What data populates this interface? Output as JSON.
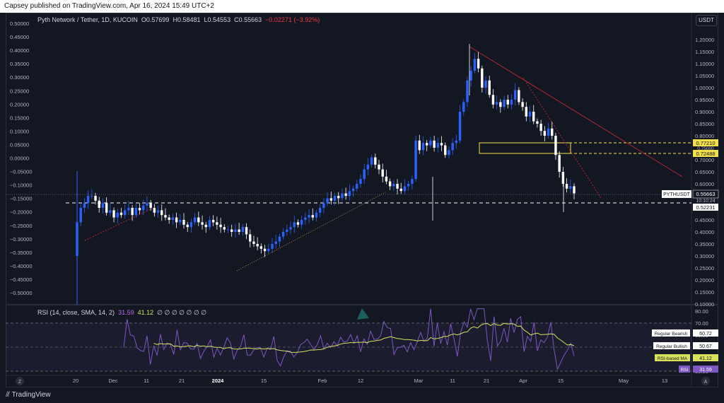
{
  "header": {
    "publisher": "Capsey published on TradingView.com, Apr 16, 2024 15:49 UTC+2"
  },
  "legend": {
    "symbol": "Pyth Network / Tether, 1D, KUCOIN",
    "open": "O0.57699",
    "high": "H0.58481",
    "low": "L0.54553",
    "close": "C0.55663",
    "change": "−0.02271 (−3.92%)"
  },
  "currency_button": "USDT",
  "rsi_legend": {
    "label": "RSI (14, close, SMA, 14, 2)",
    "rsi_value": "31.59",
    "ma_value": "41.12",
    "placeholders": "∅ ∅ ∅ ∅ ∅ ∅ ∅"
  },
  "price_badges": {
    "symbol_badge": "PYTHUSDT",
    "last_price": "0.55663",
    "countdown": "10:10:24",
    "level_low": "0.52231",
    "level_a": "0.77210",
    "level_a_under": "0.75000",
    "level_b": "0.72488"
  },
  "rsi_badges": {
    "reg_bear_label": "Regular Bearish",
    "reg_bear_value": "60.72",
    "reg_bull_label": "Regular Bullish",
    "reg_bull_value": "50.67",
    "rsi_ma_label": "RSI-based MA",
    "rsi_ma_value": "41.12",
    "rsi_label": "RSI",
    "rsi_value": "31.59"
  },
  "bottom_buttons": {
    "z": "Z",
    "a": "A"
  },
  "logo": "TradingView",
  "colors": {
    "up": "#2962ff",
    "down": "#ffffff",
    "rsi": "#7e57c2",
    "rsi_ma": "#d8e25b",
    "trend": "#b22833",
    "zone": "#f4e04d"
  },
  "chart_data": {
    "type": "candlestick",
    "right_axis_ticks": [
      "1.20000",
      "1.15000",
      "1.10000",
      "1.05000",
      "1.00000",
      "0.95000",
      "0.90000",
      "0.85000",
      "0.80000",
      "0.70000",
      "0.65000",
      "0.60000",
      "0.50000",
      "0.45000",
      "0.40000",
      "0.35000",
      "0.30000",
      "0.25000",
      "0.20000",
      "0.15000",
      "0.10000"
    ],
    "left_axis_ticks": [
      "0.50000",
      "0.45000",
      "0.40000",
      "0.35000",
      "0.30000",
      "0.25000",
      "0.20000",
      "0.15000",
      "0.10000",
      "0.05000",
      "0.00000",
      "−0.05000",
      "−0.10000",
      "−0.15000",
      "−0.20000",
      "−0.25000",
      "−0.30000",
      "−0.35000",
      "−0.40000",
      "−0.45000",
      "−0.50000"
    ],
    "x_ticks": [
      "20",
      "Dec",
      "11",
      "21",
      "2024",
      "15",
      "Feb",
      "12",
      "Mar",
      "11",
      "21",
      "Apr",
      "15",
      "May",
      "13"
    ],
    "rsi_axis_ticks": [
      "80.00",
      "70.00",
      "60.00",
      "50.00",
      "40.00",
      "30.00"
    ],
    "close": [
      0.44,
      0.5,
      0.52,
      0.55,
      0.55,
      0.53,
      0.5,
      0.52,
      0.48,
      0.49,
      0.46,
      0.48,
      0.47,
      0.49,
      0.5,
      0.47,
      0.5,
      0.49,
      0.51,
      0.52,
      0.5,
      0.48,
      0.49,
      0.47,
      0.46,
      0.45,
      0.46,
      0.44,
      0.45,
      0.43,
      0.42,
      0.44,
      0.46,
      0.44,
      0.43,
      0.42,
      0.45,
      0.44,
      0.43,
      0.42,
      0.41,
      0.41,
      0.4,
      0.41,
      0.4,
      0.42,
      0.39,
      0.36,
      0.35,
      0.34,
      0.33,
      0.32,
      0.33,
      0.35,
      0.36,
      0.38,
      0.4,
      0.41,
      0.42,
      0.44,
      0.43,
      0.45,
      0.46,
      0.47,
      0.46,
      0.48,
      0.5,
      0.52,
      0.54,
      0.53,
      0.55,
      0.54,
      0.56,
      0.55,
      0.57,
      0.58,
      0.6,
      0.62,
      0.66,
      0.68,
      0.71,
      0.68,
      0.66,
      0.63,
      0.61,
      0.59,
      0.6,
      0.58,
      0.57,
      0.59,
      0.6,
      0.62,
      0.78,
      0.74,
      0.77,
      0.76,
      0.78,
      0.75,
      0.77,
      0.76,
      0.72,
      0.74,
      0.77,
      0.78,
      0.9,
      0.94,
      1.03,
      1.07,
      1.12,
      1.08,
      1.0,
      1.03,
      0.97,
      0.93,
      0.94,
      0.92,
      0.95,
      0.93,
      0.95,
      0.99,
      0.94,
      0.92,
      0.88,
      0.9,
      0.86,
      0.85,
      0.82,
      0.8,
      0.83,
      0.8,
      0.72,
      0.65,
      0.6,
      0.58,
      0.59,
      0.56
    ]
  }
}
